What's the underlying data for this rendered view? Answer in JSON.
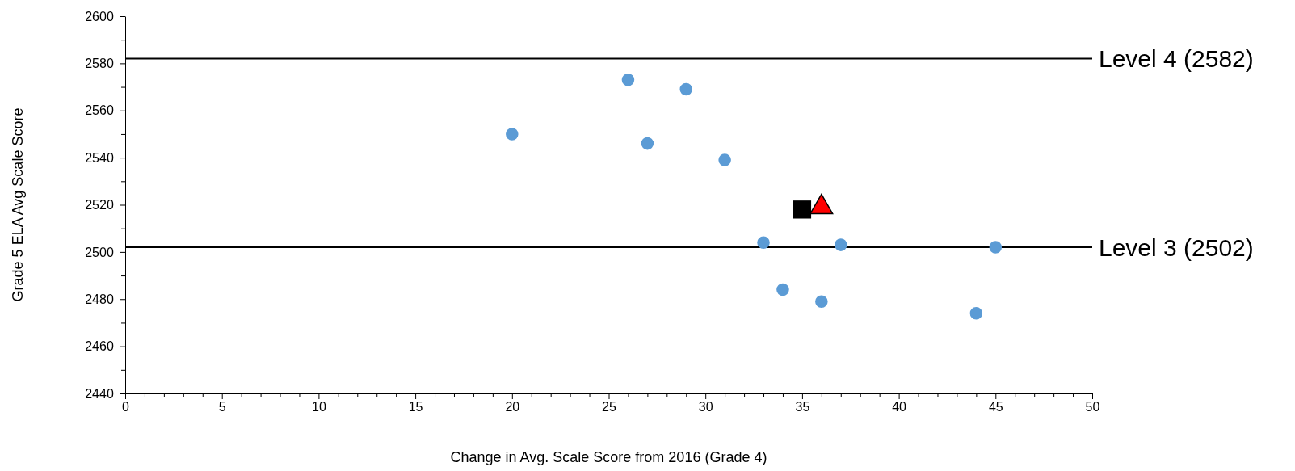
{
  "chart_data": {
    "type": "scatter",
    "xlabel": "Change in Avg. Scale Score from 2016 (Grade 4)",
    "ylabel": "Grade 5 ELA Avg Scale Score",
    "xlim": [
      0,
      50
    ],
    "ylim": [
      2440,
      2600
    ],
    "xticks": [
      0,
      {
        "value": 1,
        "label": null
      },
      {
        "value": 2,
        "label": null
      },
      {
        "value": 3,
        "label": null
      },
      {
        "value": 4,
        "label": null
      },
      5,
      {
        "value": 6,
        "label": null
      },
      {
        "value": 7,
        "label": null
      },
      {
        "value": 8,
        "label": null
      },
      {
        "value": 9,
        "label": null
      },
      10,
      {
        "value": 11,
        "label": null
      },
      {
        "value": 12,
        "label": null
      },
      {
        "value": 13,
        "label": null
      },
      {
        "value": 14,
        "label": null
      },
      15,
      {
        "value": 16,
        "label": null
      },
      {
        "value": 17,
        "label": null
      },
      {
        "value": 18,
        "label": null
      },
      {
        "value": 19,
        "label": null
      },
      20,
      {
        "value": 21,
        "label": null
      },
      {
        "value": 22,
        "label": null
      },
      {
        "value": 23,
        "label": null
      },
      {
        "value": 24,
        "label": null
      },
      25,
      {
        "value": 26,
        "label": null
      },
      {
        "value": 27,
        "label": null
      },
      {
        "value": 28,
        "label": null
      },
      {
        "value": 29,
        "label": null
      },
      30,
      {
        "value": 31,
        "label": null
      },
      {
        "value": 32,
        "label": null
      },
      {
        "value": 33,
        "label": null
      },
      {
        "value": 34,
        "label": null
      },
      35,
      {
        "value": 36,
        "label": null
      },
      {
        "value": 37,
        "label": null
      },
      {
        "value": 38,
        "label": null
      },
      {
        "value": 39,
        "label": null
      },
      40,
      {
        "value": 41,
        "label": null
      },
      {
        "value": 42,
        "label": null
      },
      {
        "value": 43,
        "label": null
      },
      {
        "value": 44,
        "label": null
      },
      45,
      {
        "value": 46,
        "label": null
      },
      {
        "value": 47,
        "label": null
      },
      {
        "value": 48,
        "label": null
      },
      {
        "value": 49,
        "label": null
      },
      50
    ],
    "yticks": [
      2440,
      {
        "value": 2450,
        "label": null
      },
      2460,
      {
        "value": 2470,
        "label": null
      },
      2480,
      {
        "value": 2490,
        "label": null
      },
      2500,
      {
        "value": 2510,
        "label": null
      },
      2520,
      {
        "value": 2530,
        "label": null
      },
      2540,
      {
        "value": 2550,
        "label": null
      },
      2560,
      {
        "value": 2570,
        "label": null
      },
      2580,
      {
        "value": 2590,
        "label": null
      },
      2600
    ],
    "grid": false,
    "series": [
      {
        "color": "#5b9bd5",
        "marker": "circle",
        "x": [
          20,
          26,
          29,
          27,
          31,
          33,
          37,
          45,
          34,
          36,
          44
        ],
        "values": [
          2550,
          2573,
          2569,
          2546,
          2539,
          2504,
          2503,
          2502,
          2484,
          2479,
          2474
        ]
      },
      {
        "color": "#000000",
        "marker": "square",
        "x": [
          35
        ],
        "values": [
          2518
        ]
      },
      {
        "color": "#ff0000",
        "marker": "triangle",
        "x": [
          36
        ],
        "values": [
          2519
        ]
      }
    ],
    "ref_lines": [
      {
        "axis": "y",
        "value": 2582,
        "label": "Level 4 (2582)",
        "color": "#000000"
      },
      {
        "axis": "y",
        "value": 2502,
        "label": "Level 3 (2502)",
        "color": "#000000"
      }
    ]
  }
}
